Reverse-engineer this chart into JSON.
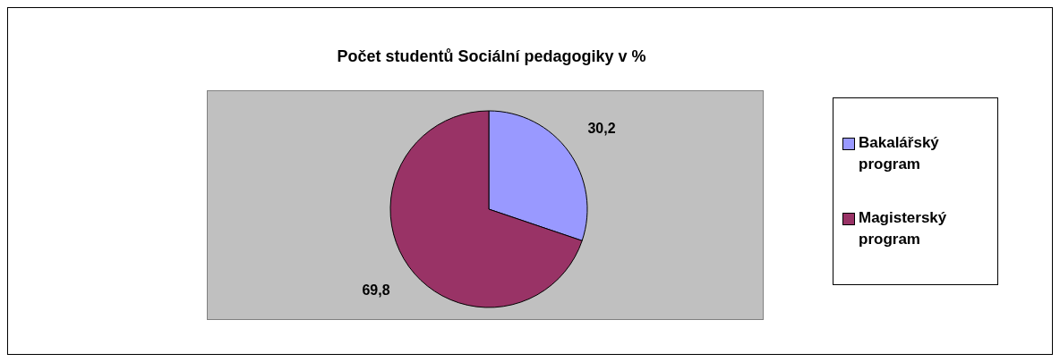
{
  "chart_data": {
    "type": "pie",
    "title": "Počet studentů Sociální pedagogiky v %",
    "categories": [
      "Bakalářský program",
      "Magisterský program"
    ],
    "values": [
      30.2,
      69.8
    ],
    "colors": [
      "#9999ff",
      "#993366"
    ],
    "value_labels": [
      "30,2",
      "69,8"
    ],
    "legend": "right"
  }
}
